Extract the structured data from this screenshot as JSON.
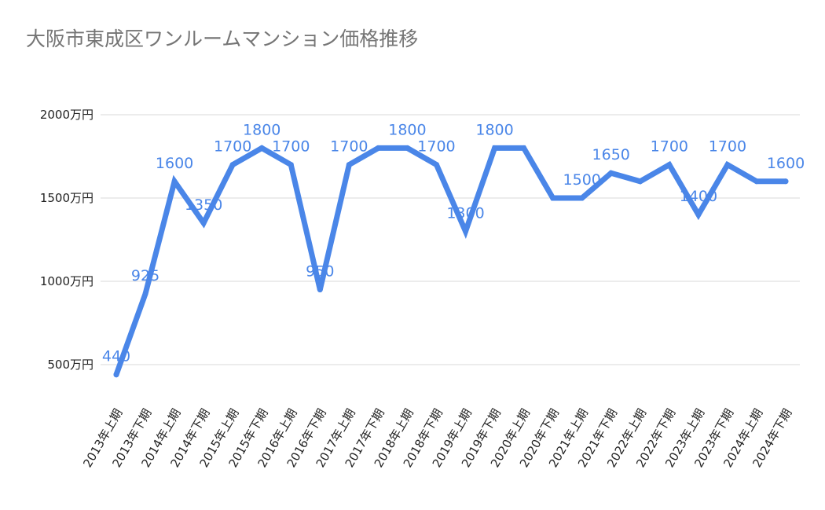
{
  "chart_data": {
    "type": "line",
    "title": "大阪市東成区ワンルームマンション価格推移",
    "xlabel": "",
    "ylabel": "",
    "ylim": [
      500,
      2000
    ],
    "ytick_values": [
      500,
      1000,
      1500,
      2000
    ],
    "ytick_labels": [
      "500万円",
      "1000万円",
      "1500万円",
      "2000万円"
    ],
    "grid": true,
    "legend": "none",
    "color": "#4a86e8",
    "categories": [
      "2013年上期",
      "2013年下期",
      "2014年上期",
      "2014年下期",
      "2015年上期",
      "2015年下期",
      "2016年上期",
      "2016年下期",
      "2017年上期",
      "2017年下期",
      "2018年上期",
      "2018年下期",
      "2019年上期",
      "2019年下期",
      "2020年上期",
      "2020年下期",
      "2021年上期",
      "2021年下期",
      "2022年上期",
      "2022年下期",
      "2023年上期",
      "2023年下期",
      "2024年上期",
      "2024年下期"
    ],
    "values": [
      440,
      925,
      1600,
      1350,
      1700,
      1800,
      1700,
      950,
      1700,
      1800,
      1800,
      1700,
      1300,
      1800,
      1800,
      1500,
      1500,
      1650,
      1600,
      1700,
      1400,
      1700,
      1600,
      1600
    ],
    "data_labels": [
      "440",
      "925",
      "1600",
      "1350",
      "1700",
      "1800",
      "1700",
      "950",
      "1700",
      "",
      "1800",
      "1700",
      "1300",
      "1800",
      "",
      "",
      "1500",
      "1650",
      "",
      "1700",
      "1400",
      "1700",
      "",
      "1600"
    ]
  }
}
